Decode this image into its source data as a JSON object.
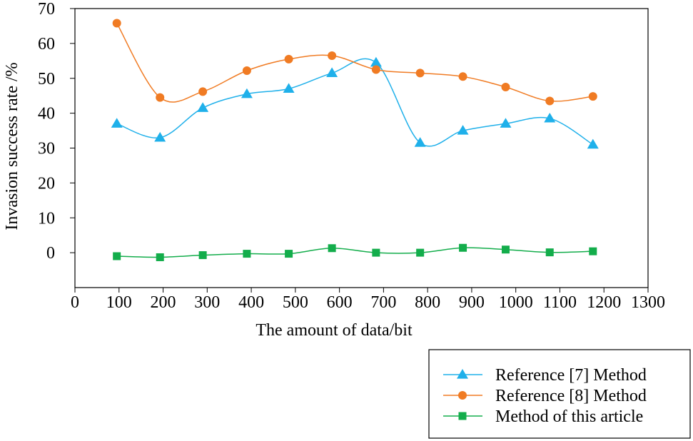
{
  "chart_data": {
    "type": "line",
    "title": "",
    "xlabel": "The amount of data/bit",
    "ylabel": "Invasion success rate /%",
    "xlim": [
      0,
      1300
    ],
    "ylim": [
      -10,
      70
    ],
    "xticks": [
      0,
      100,
      200,
      300,
      400,
      500,
      600,
      700,
      800,
      900,
      1000,
      1100,
      1200,
      1300
    ],
    "yticks": [
      0,
      10,
      20,
      30,
      40,
      50,
      60,
      70
    ],
    "legend_position": "bottom-right",
    "series": [
      {
        "name": "Reference [7] Method",
        "color": "#1fb0ea",
        "marker": "triangle",
        "x": [
          95,
          193,
          290,
          390,
          485,
          583,
          683,
          783,
          880,
          977,
          1077,
          1175
        ],
        "y": [
          37,
          33,
          41.5,
          45.5,
          47,
          51.5,
          54.5,
          31.5,
          35,
          37,
          38.5,
          31
        ]
      },
      {
        "name": "Reference [8] Method",
        "color": "#f07b23",
        "marker": "circle",
        "x": [
          95,
          193,
          290,
          390,
          485,
          583,
          683,
          783,
          880,
          977,
          1077,
          1175
        ],
        "y": [
          65.8,
          44.5,
          46.2,
          52.2,
          55.5,
          56.5,
          52.5,
          51.5,
          50.5,
          47.5,
          43.5,
          44.8
        ]
      },
      {
        "name": "Method of this article",
        "color": "#13ad4b",
        "marker": "square",
        "x": [
          95,
          193,
          290,
          390,
          485,
          583,
          683,
          783,
          880,
          977,
          1077,
          1175
        ],
        "y": [
          -1,
          -1.3,
          -0.7,
          -0.3,
          -0.3,
          1.3,
          0,
          0,
          1.4,
          0.9,
          0.1,
          0.4
        ]
      }
    ]
  }
}
